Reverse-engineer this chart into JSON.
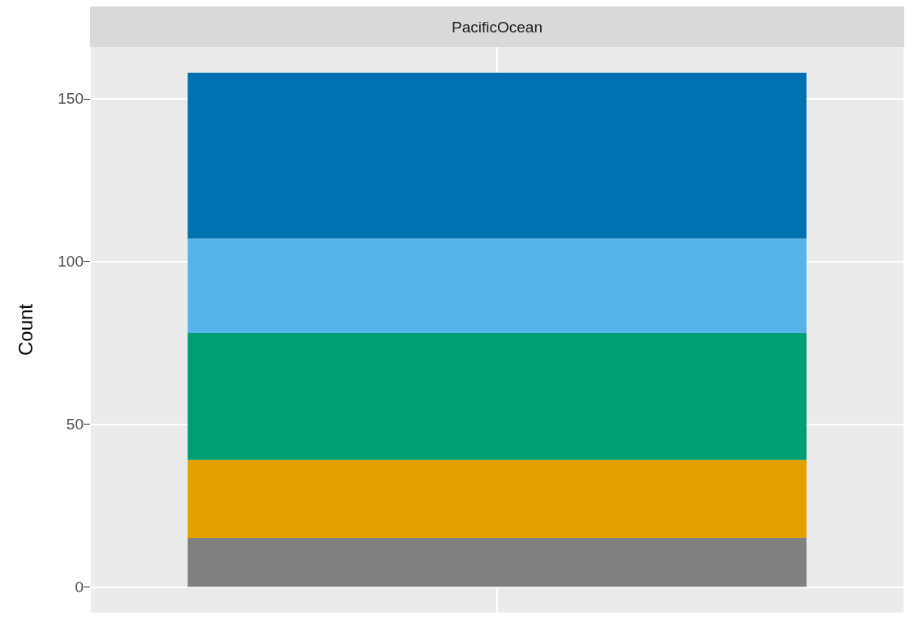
{
  "chart_data": {
    "type": "bar",
    "title": "PacificOcean",
    "ylabel": "Count",
    "categories": [
      null
    ],
    "stacked": true,
    "series": [
      {
        "color": "#808080",
        "values": [
          15
        ]
      },
      {
        "color": "#e69f00",
        "values": [
          24
        ]
      },
      {
        "color": "#009e73",
        "values": [
          39
        ]
      },
      {
        "color": "#56b4e9",
        "values": [
          29
        ]
      },
      {
        "color": "#0072b2",
        "values": [
          51
        ]
      }
    ],
    "ylim": [
      -7.9,
      165.9
    ],
    "yticks": [
      0,
      50,
      100,
      150
    ],
    "grid": true,
    "tick_labels": "y"
  }
}
